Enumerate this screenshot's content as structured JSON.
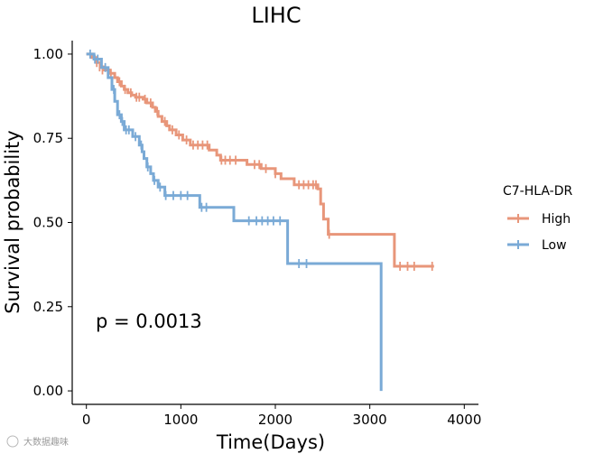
{
  "chart_data": {
    "type": "line",
    "subtype": "kaplan-meier",
    "title": "LIHC",
    "xlabel": "Time(Days)",
    "ylabel": "Survival probability",
    "xlim": [
      -150,
      4150
    ],
    "ylim": [
      -0.04,
      1.04
    ],
    "xticks": [
      0,
      1000,
      2000,
      3000,
      4000
    ],
    "yticks": [
      0,
      0.25,
      0.5,
      0.75,
      1
    ],
    "xtick_labels": [
      "0",
      "1000",
      "2000",
      "3000",
      "4000"
    ],
    "ytick_labels": [
      "0.00",
      "0.25",
      "0.50",
      "0.75",
      "1.00"
    ],
    "annotation": "p = 0.0013",
    "legend": {
      "title": "C7-HLA-DR",
      "position": "right",
      "entries": [
        "High",
        "Low"
      ]
    },
    "series": [
      {
        "name": "High",
        "color": "#e8967a",
        "steps": [
          [
            0,
            1.0
          ],
          [
            60,
            0.99
          ],
          [
            110,
            0.975
          ],
          [
            150,
            0.962
          ],
          [
            190,
            0.953
          ],
          [
            240,
            0.943
          ],
          [
            300,
            0.93
          ],
          [
            330,
            0.918
          ],
          [
            370,
            0.905
          ],
          [
            400,
            0.895
          ],
          [
            440,
            0.885
          ],
          [
            480,
            0.878
          ],
          [
            520,
            0.872
          ],
          [
            600,
            0.866
          ],
          [
            640,
            0.855
          ],
          [
            700,
            0.842
          ],
          [
            730,
            0.83
          ],
          [
            760,
            0.815
          ],
          [
            800,
            0.8
          ],
          [
            850,
            0.787
          ],
          [
            880,
            0.775
          ],
          [
            950,
            0.76
          ],
          [
            1020,
            0.745
          ],
          [
            1100,
            0.73
          ],
          [
            1300,
            0.715
          ],
          [
            1380,
            0.7
          ],
          [
            1420,
            0.685
          ],
          [
            1700,
            0.672
          ],
          [
            1850,
            0.66
          ],
          [
            2000,
            0.645
          ],
          [
            2060,
            0.63
          ],
          [
            2200,
            0.612
          ],
          [
            2450,
            0.6
          ],
          [
            2480,
            0.555
          ],
          [
            2510,
            0.51
          ],
          [
            2560,
            0.465
          ],
          [
            3260,
            0.37
          ],
          [
            3680,
            0.37
          ]
        ],
        "censors": [
          [
            110,
            0.975
          ],
          [
            140,
            0.962
          ],
          [
            170,
            0.953
          ],
          [
            230,
            0.943
          ],
          [
            260,
            0.943
          ],
          [
            350,
            0.918
          ],
          [
            410,
            0.895
          ],
          [
            470,
            0.885
          ],
          [
            530,
            0.872
          ],
          [
            560,
            0.872
          ],
          [
            620,
            0.866
          ],
          [
            680,
            0.855
          ],
          [
            750,
            0.83
          ],
          [
            830,
            0.8
          ],
          [
            910,
            0.775
          ],
          [
            980,
            0.76
          ],
          [
            1060,
            0.745
          ],
          [
            1130,
            0.73
          ],
          [
            1180,
            0.73
          ],
          [
            1230,
            0.73
          ],
          [
            1280,
            0.73
          ],
          [
            1430,
            0.685
          ],
          [
            1470,
            0.685
          ],
          [
            1520,
            0.685
          ],
          [
            1580,
            0.685
          ],
          [
            1780,
            0.672
          ],
          [
            1830,
            0.672
          ],
          [
            1900,
            0.66
          ],
          [
            2000,
            0.645
          ],
          [
            2250,
            0.612
          ],
          [
            2300,
            0.612
          ],
          [
            2350,
            0.612
          ],
          [
            2400,
            0.612
          ],
          [
            2430,
            0.612
          ],
          [
            2570,
            0.465
          ],
          [
            3320,
            0.37
          ],
          [
            3400,
            0.37
          ],
          [
            3470,
            0.37
          ],
          [
            3660,
            0.37
          ]
        ]
      },
      {
        "name": "Low",
        "color": "#7aaad6",
        "steps": [
          [
            0,
            1.0
          ],
          [
            80,
            0.985
          ],
          [
            160,
            0.96
          ],
          [
            230,
            0.93
          ],
          [
            270,
            0.895
          ],
          [
            300,
            0.86
          ],
          [
            330,
            0.82
          ],
          [
            370,
            0.8
          ],
          [
            400,
            0.775
          ],
          [
            490,
            0.755
          ],
          [
            560,
            0.73
          ],
          [
            590,
            0.71
          ],
          [
            610,
            0.69
          ],
          [
            640,
            0.665
          ],
          [
            680,
            0.645
          ],
          [
            710,
            0.625
          ],
          [
            760,
            0.605
          ],
          [
            830,
            0.58
          ],
          [
            1200,
            0.545
          ],
          [
            1560,
            0.505
          ],
          [
            2130,
            0.378
          ],
          [
            3120,
            0.0
          ]
        ],
        "censors": [
          [
            40,
            1.0
          ],
          [
            90,
            0.985
          ],
          [
            120,
            0.985
          ],
          [
            200,
            0.96
          ],
          [
            290,
            0.895
          ],
          [
            350,
            0.82
          ],
          [
            380,
            0.8
          ],
          [
            420,
            0.775
          ],
          [
            450,
            0.775
          ],
          [
            520,
            0.755
          ],
          [
            580,
            0.73
          ],
          [
            650,
            0.665
          ],
          [
            720,
            0.625
          ],
          [
            780,
            0.605
          ],
          [
            840,
            0.58
          ],
          [
            920,
            0.58
          ],
          [
            1000,
            0.58
          ],
          [
            1070,
            0.58
          ],
          [
            1220,
            0.545
          ],
          [
            1270,
            0.545
          ],
          [
            1720,
            0.505
          ],
          [
            1800,
            0.505
          ],
          [
            1860,
            0.505
          ],
          [
            1920,
            0.505
          ],
          [
            1980,
            0.505
          ],
          [
            2050,
            0.505
          ],
          [
            2250,
            0.378
          ],
          [
            2330,
            0.378
          ]
        ]
      }
    ]
  },
  "watermark": "大数据趣味"
}
